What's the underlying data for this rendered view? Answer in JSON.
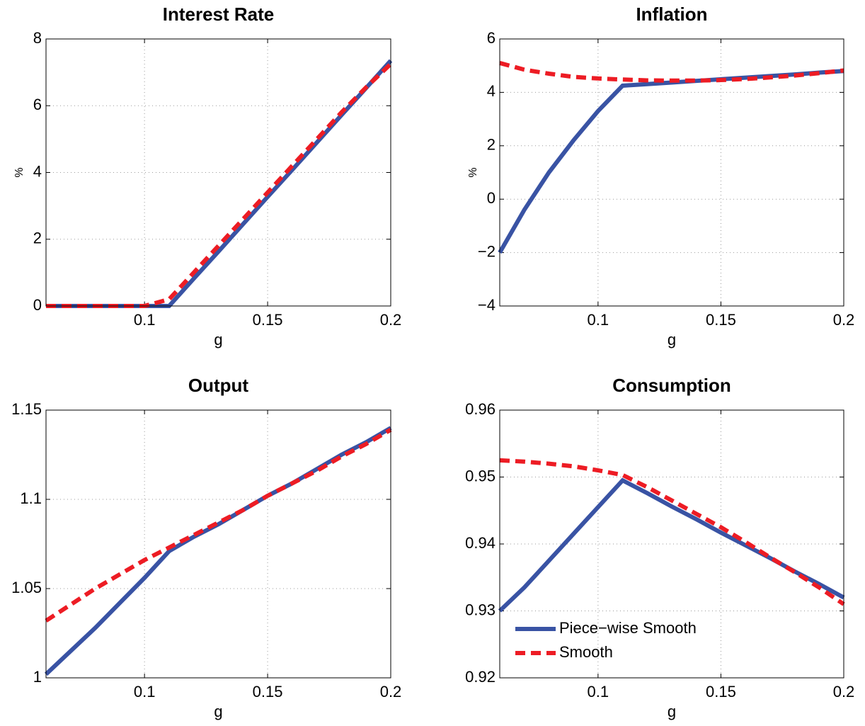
{
  "chart_data": [
    {
      "type": "line",
      "title": "Interest Rate",
      "x_label": "g",
      "y_label": "%",
      "x": [
        0.06,
        0.07,
        0.08,
        0.09,
        0.1,
        0.11,
        0.12,
        0.13,
        0.14,
        0.15,
        0.16,
        0.17,
        0.18,
        0.19,
        0.2
      ],
      "xlim": [
        0.06,
        0.2
      ],
      "xticks": [
        0.1,
        0.15,
        0.2
      ],
      "ylim": [
        0,
        8
      ],
      "yticks": [
        0,
        2,
        4,
        6,
        8
      ],
      "grid": true,
      "series": [
        {
          "color": "#3953a4",
          "style": "solid",
          "values": [
            0,
            0,
            0,
            0,
            0,
            0,
            0.82,
            1.63,
            2.45,
            3.27,
            4.08,
            4.9,
            5.72,
            6.53,
            7.35
          ]
        },
        {
          "color": "#ed1c24",
          "style": "dashed",
          "values": [
            0,
            0,
            0,
            0,
            0,
            0.2,
            1.0,
            1.8,
            2.6,
            3.4,
            4.2,
            5.0,
            5.8,
            6.55,
            7.25
          ]
        }
      ]
    },
    {
      "type": "line",
      "title": "Inflation",
      "x_label": "g",
      "y_label": "%",
      "x": [
        0.06,
        0.07,
        0.08,
        0.09,
        0.1,
        0.11,
        0.12,
        0.13,
        0.14,
        0.15,
        0.16,
        0.17,
        0.18,
        0.19,
        0.2
      ],
      "xlim": [
        0.06,
        0.2
      ],
      "xticks": [
        0.1,
        0.15,
        0.2
      ],
      "ylim": [
        -4,
        6
      ],
      "yticks": [
        {
          "value": -4,
          "label": "−4"
        },
        {
          "value": -2,
          "label": "−2"
        },
        0,
        2,
        4,
        6
      ],
      "grid": true,
      "series": [
        {
          "color": "#3953a4",
          "style": "solid",
          "values": [
            -2,
            -0.4,
            1.0,
            2.2,
            3.3,
            4.25,
            4.31,
            4.37,
            4.43,
            4.49,
            4.55,
            4.61,
            4.67,
            4.74,
            4.8
          ]
        },
        {
          "color": "#ed1c24",
          "style": "dashed",
          "values": [
            5.1,
            4.85,
            4.7,
            4.58,
            4.52,
            4.48,
            4.45,
            4.44,
            4.44,
            4.46,
            4.5,
            4.56,
            4.63,
            4.72,
            4.82
          ]
        }
      ]
    },
    {
      "type": "line",
      "title": "Output",
      "x_label": "g",
      "x": [
        0.06,
        0.07,
        0.08,
        0.09,
        0.1,
        0.11,
        0.12,
        0.13,
        0.14,
        0.15,
        0.16,
        0.17,
        0.18,
        0.19,
        0.2
      ],
      "xlim": [
        0.06,
        0.2
      ],
      "xticks": [
        0.1,
        0.15,
        0.2
      ],
      "ylim": [
        1,
        1.15
      ],
      "yticks": [
        1,
        1.05,
        1.1,
        1.15
      ],
      "grid": true,
      "series": [
        {
          "color": "#3953a4",
          "style": "solid",
          "values": [
            1.002,
            1.015,
            1.028,
            1.042,
            1.056,
            1.071,
            1.079,
            1.086,
            1.094,
            1.102,
            1.109,
            1.117,
            1.125,
            1.132,
            1.14
          ]
        },
        {
          "color": "#ed1c24",
          "style": "dashed",
          "values": [
            1.032,
            1.041,
            1.05,
            1.058,
            1.066,
            1.073,
            1.08,
            1.087,
            1.094,
            1.102,
            1.109,
            1.116,
            1.124,
            1.131,
            1.139
          ]
        }
      ]
    },
    {
      "type": "line",
      "title": "Consumption",
      "x_label": "g",
      "x": [
        0.06,
        0.07,
        0.08,
        0.09,
        0.1,
        0.11,
        0.12,
        0.13,
        0.14,
        0.15,
        0.16,
        0.17,
        0.18,
        0.19,
        0.2
      ],
      "xlim": [
        0.06,
        0.2
      ],
      "xticks": [
        0.1,
        0.15,
        0.2
      ],
      "ylim": [
        0.92,
        0.96
      ],
      "yticks": [
        0.92,
        0.93,
        0.94,
        0.95,
        0.96
      ],
      "grid": true,
      "legend": "lower left",
      "series": [
        {
          "name": "Piece−wise Smooth",
          "color": "#3953a4",
          "style": "solid",
          "values": [
            0.93,
            0.9335,
            0.9375,
            0.9415,
            0.9455,
            0.9495,
            0.9476,
            0.9456,
            0.9437,
            0.9417,
            0.9398,
            0.9379,
            0.9359,
            0.934,
            0.932
          ]
        },
        {
          "name": "Smooth",
          "color": "#ed1c24",
          "style": "dashed",
          "values": [
            0.9525,
            0.9523,
            0.952,
            0.9516,
            0.951,
            0.9503,
            0.9485,
            0.9465,
            0.9445,
            0.9425,
            0.9403,
            0.938,
            0.9358,
            0.9335,
            0.931
          ]
        }
      ]
    }
  ]
}
